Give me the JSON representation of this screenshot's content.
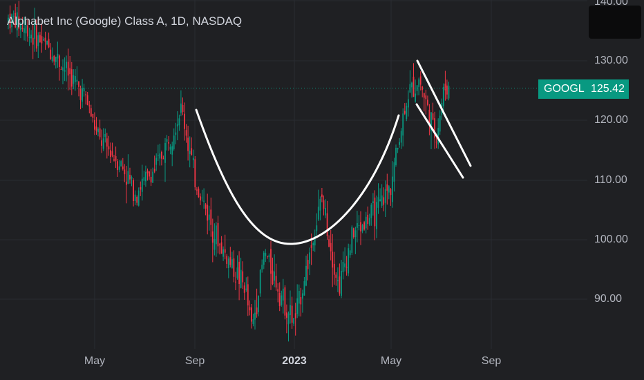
{
  "title": "Alphabet Inc (Google) Class A, 1D, NASDAQ",
  "last_price": {
    "ticker": "GOOGL",
    "value": "125.42"
  },
  "colors": {
    "up": "#089981",
    "down": "#f23645",
    "grid": "#2a2c31",
    "background": "#1f2023",
    "drawing": "#ffffff"
  },
  "chart_data": {
    "type": "candlestick",
    "title": "Alphabet Inc (Google) Class A, 1D, NASDAQ",
    "ylim": [
      83,
      141
    ],
    "y_ticks": [
      "140.00",
      "130.00",
      "120.00",
      "110.00",
      "100.00",
      "90.00"
    ],
    "x_ticks": [
      {
        "label": "May",
        "bold": false
      },
      {
        "label": "Sep",
        "bold": false
      },
      {
        "label": "2023",
        "bold": true
      },
      {
        "label": "May",
        "bold": false
      },
      {
        "label": "Sep",
        "bold": false
      }
    ],
    "approx_close_path": [
      {
        "date": "2022-02",
        "close": 137
      },
      {
        "date": "2022-03-15",
        "close": 132
      },
      {
        "date": "2022-04-20",
        "close": 124
      },
      {
        "date": "2022-05-05",
        "close": 117
      },
      {
        "date": "2022-06-01",
        "close": 113
      },
      {
        "date": "2022-06-20",
        "close": 108
      },
      {
        "date": "2022-07-15",
        "close": 112
      },
      {
        "date": "2022-08-15",
        "close": 122
      },
      {
        "date": "2022-09-01",
        "close": 110
      },
      {
        "date": "2022-10-01",
        "close": 99
      },
      {
        "date": "2022-11-01",
        "close": 92
      },
      {
        "date": "2022-11-10",
        "close": 85
      },
      {
        "date": "2022-11-25",
        "close": 98
      },
      {
        "date": "2022-12-20",
        "close": 89
      },
      {
        "date": "2023-01-01",
        "close": 86
      },
      {
        "date": "2023-02-05",
        "close": 107
      },
      {
        "date": "2023-02-25",
        "close": 92
      },
      {
        "date": "2023-03-15",
        "close": 101
      },
      {
        "date": "2023-04-15",
        "close": 105
      },
      {
        "date": "2023-04-30",
        "close": 109
      },
      {
        "date": "2023-05-20",
        "close": 124
      },
      {
        "date": "2023-06-05",
        "close": 127
      },
      {
        "date": "2023-06-25",
        "close": 117
      },
      {
        "date": "2023-07-05",
        "close": 125.42
      }
    ],
    "last_value": 125.42,
    "annotations": [
      "cup (rounded bottom) drawing",
      "descending channel (flag) drawing"
    ]
  }
}
